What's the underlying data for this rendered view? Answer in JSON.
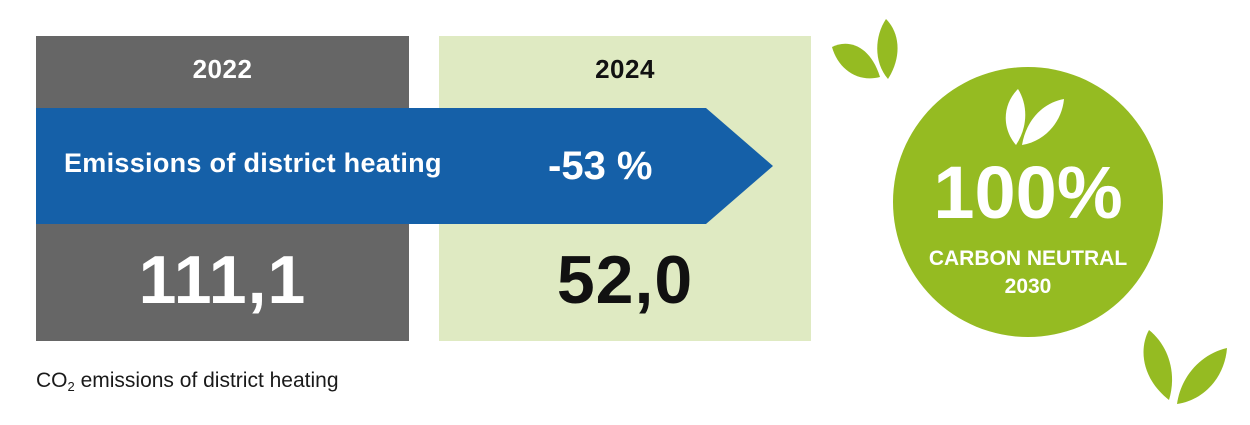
{
  "comparison": {
    "year_2022": "2022",
    "year_2024": "2024",
    "value_2022": "111,1",
    "value_2024": "52,0",
    "arrow_label": "Emissions of district heating",
    "change": "-53 %"
  },
  "caption": {
    "prefix": "CO",
    "subscript": "2",
    "suffix": " emissions of district heating"
  },
  "badge": {
    "percent": "100%",
    "line1": "CARBON NEUTRAL",
    "line2": "2030"
  },
  "icons": [
    "leaf-pair-icon",
    "leaf-pair-icon",
    "leaf-pair-icon"
  ],
  "colors": {
    "panel_2022": "#666666",
    "panel_2024": "#dfeac2",
    "arrow": "#1560a8",
    "badge": "#95bb22"
  }
}
